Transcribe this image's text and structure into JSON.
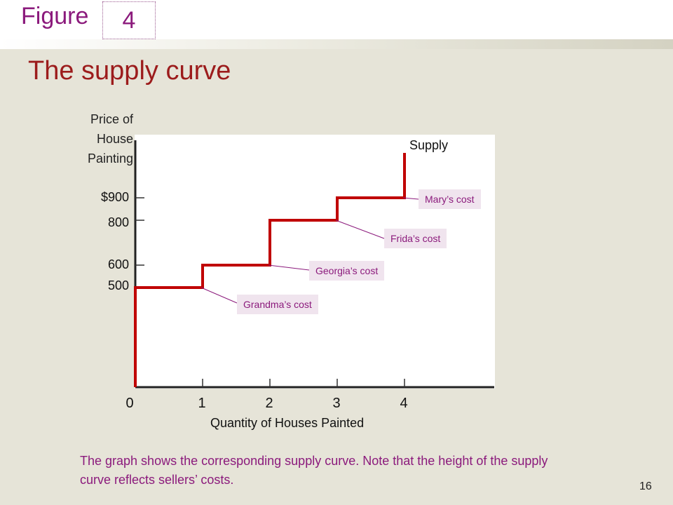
{
  "header": {
    "figure_word": "Figure",
    "figure_number": "4"
  },
  "slide": {
    "title": "The supply curve",
    "caption": "The graph shows the corresponding supply curve. Note that the height of the supply curve reflects sellers’ costs.",
    "page_number": "16"
  },
  "colors": {
    "accent": "#8b1a7c",
    "title": "#9c1c1c",
    "curve": "#c00000",
    "cost_label_bg": "#f0e4ee",
    "background": "#e6e4d8"
  },
  "chart_data": {
    "type": "line",
    "title": "",
    "ylabel_lines": [
      "Price of",
      "House",
      "Painting"
    ],
    "xlabel": "Quantity of Houses Painted",
    "series_label": "Supply",
    "y_tick_labels": [
      {
        "value": 900,
        "label": "$900"
      },
      {
        "value": 800,
        "label": "800"
      },
      {
        "value": 600,
        "label": "600"
      },
      {
        "value": 500,
        "label": "500"
      }
    ],
    "x_tick_labels": [
      {
        "value": 0,
        "label": "0"
      },
      {
        "value": 1,
        "label": "1"
      },
      {
        "value": 2,
        "label": "2"
      },
      {
        "value": 3,
        "label": "3"
      },
      {
        "value": 4,
        "label": "4"
      }
    ],
    "supply_steps": [
      {
        "price": 500,
        "q_from": 0,
        "q_to": 1
      },
      {
        "price": 600,
        "q_from": 1,
        "q_to": 2
      },
      {
        "price": 800,
        "q_from": 2,
        "q_to": 3
      },
      {
        "price": 900,
        "q_from": 3,
        "q_to": 4
      }
    ],
    "curve_top_price": 1100,
    "annotations": [
      {
        "label": "Grandma’s cost",
        "price": 500,
        "q": 1
      },
      {
        "label": "Georgia’s cost",
        "price": 600,
        "q": 2
      },
      {
        "label": "Frida’s cost",
        "price": 800,
        "q": 3
      },
      {
        "label": "Mary’s cost",
        "price": 900,
        "q": 4
      }
    ],
    "grid": false
  }
}
